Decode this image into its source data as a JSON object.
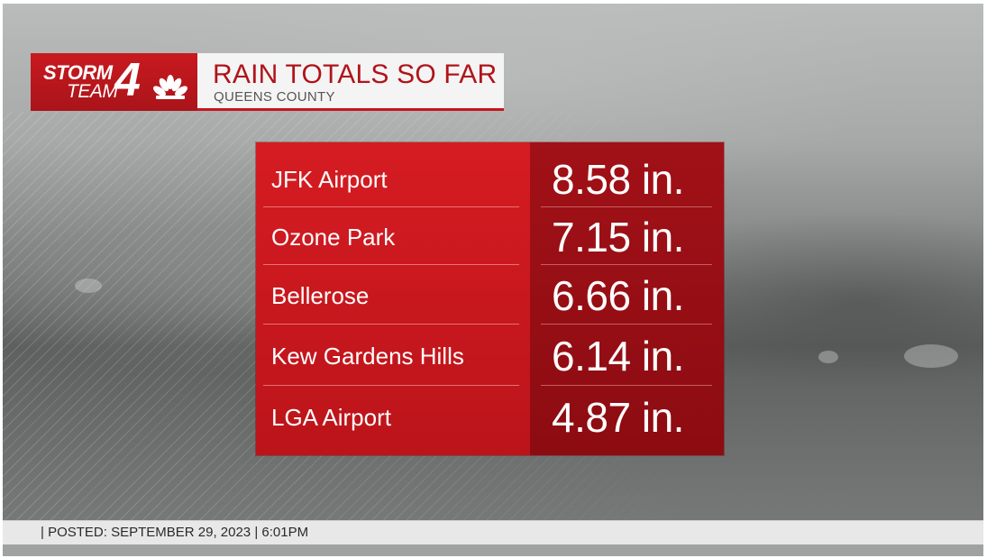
{
  "logo": {
    "line1": "STORM",
    "line2": "TEAM",
    "number": "4"
  },
  "title": {
    "main": "RAIN TOTALS SO FAR",
    "sub": "QUEENS COUNTY"
  },
  "totals": [
    {
      "location": "JFK Airport",
      "amount": "8.58 in."
    },
    {
      "location": "Ozone Park",
      "amount": "7.15 in."
    },
    {
      "location": "Bellerose",
      "amount": "6.66 in."
    },
    {
      "location": "Kew Gardens Hills",
      "amount": "6.14 in."
    },
    {
      "location": "LGA Airport",
      "amount": "4.87 in."
    }
  ],
  "footer": {
    "posted": "| POSTED:  SEPTEMBER 29, 2023   |   6:01PM"
  },
  "colors": {
    "brand_red": "#c8151c",
    "value_column": "#950e14"
  }
}
